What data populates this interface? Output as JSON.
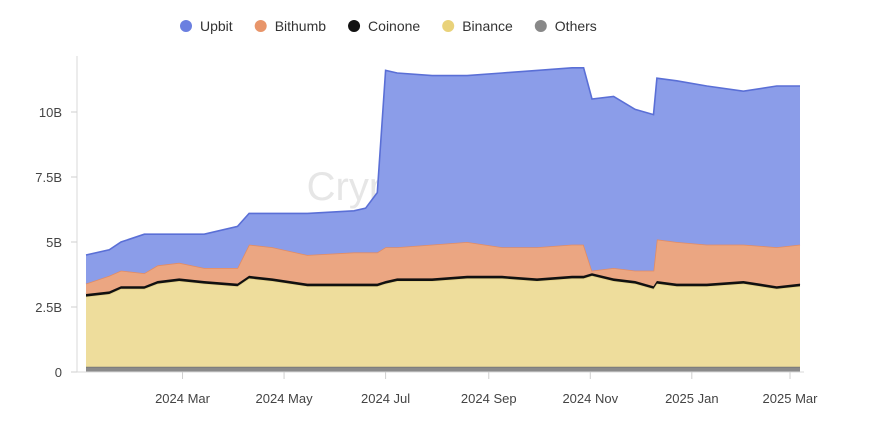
{
  "chart_data": {
    "type": "area",
    "stacked": true,
    "watermark": "CryptoQuant",
    "legend_position": "top-center",
    "grid": false,
    "ylim": [
      0,
      12000000000
    ],
    "y_ticks": [
      {
        "value": 0,
        "label": "0"
      },
      {
        "value": 2500000000,
        "label": "2.5B"
      },
      {
        "value": 5000000000,
        "label": "5B"
      },
      {
        "value": 7500000000,
        "label": "7.5B"
      },
      {
        "value": 10000000000,
        "label": "10B"
      }
    ],
    "x_ticks": [
      {
        "value": "2024-03-01",
        "label": "2024 Mar"
      },
      {
        "value": "2024-05-01",
        "label": "2024 May"
      },
      {
        "value": "2024-07-01",
        "label": "2024 Jul"
      },
      {
        "value": "2024-09-01",
        "label": "2024 Sep"
      },
      {
        "value": "2024-11-01",
        "label": "2024 Nov"
      },
      {
        "value": "2025-01-01",
        "label": "2025 Jan"
      },
      {
        "value": "2025-03-01",
        "label": "2025 Mar"
      }
    ],
    "x": [
      "2024-01-03",
      "2024-01-17",
      "2024-01-24",
      "2024-02-07",
      "2024-02-15",
      "2024-02-28",
      "2024-03-14",
      "2024-04-03",
      "2024-04-10",
      "2024-04-24",
      "2024-05-15",
      "2024-06-12",
      "2024-06-19",
      "2024-06-26",
      "2024-07-01",
      "2024-07-08",
      "2024-07-29",
      "2024-08-19",
      "2024-09-09",
      "2024-09-30",
      "2024-10-21",
      "2024-10-28",
      "2024-11-02",
      "2024-11-15",
      "2024-11-28",
      "2024-12-09",
      "2024-12-11",
      "2024-12-23",
      "2025-01-10",
      "2025-02-01",
      "2025-02-21",
      "2025-03-07"
    ],
    "series": [
      {
        "name": "Others",
        "color": "#8a8a8a",
        "values": [
          0.2,
          0.2,
          0.2,
          0.2,
          0.2,
          0.2,
          0.2,
          0.2,
          0.2,
          0.2,
          0.2,
          0.2,
          0.2,
          0.2,
          0.2,
          0.2,
          0.2,
          0.2,
          0.2,
          0.2,
          0.2,
          0.2,
          0.2,
          0.2,
          0.2,
          0.2,
          0.2,
          0.2,
          0.2,
          0.2,
          0.2,
          0.2
        ]
      },
      {
        "name": "Binance",
        "color": "#eedd9c",
        "values": [
          2.7,
          2.8,
          3.0,
          3.0,
          3.2,
          3.3,
          3.2,
          3.1,
          3.4,
          3.3,
          3.1,
          3.1,
          3.1,
          3.1,
          3.2,
          3.3,
          3.3,
          3.4,
          3.4,
          3.3,
          3.4,
          3.4,
          3.5,
          3.3,
          3.2,
          3.0,
          3.2,
          3.1,
          3.1,
          3.2,
          3.0,
          3.1
        ]
      },
      {
        "name": "Coinone",
        "color": "#111111",
        "values": [
          0.1,
          0.1,
          0.1,
          0.1,
          0.1,
          0.1,
          0.1,
          0.1,
          0.1,
          0.1,
          0.1,
          0.1,
          0.1,
          0.1,
          0.1,
          0.1,
          0.1,
          0.1,
          0.1,
          0.1,
          0.1,
          0.1,
          0.1,
          0.1,
          0.1,
          0.1,
          0.1,
          0.1,
          0.1,
          0.1,
          0.1,
          0.1
        ]
      },
      {
        "name": "Bithumb",
        "color": "#eba682",
        "values": [
          0.4,
          0.6,
          0.6,
          0.5,
          0.6,
          0.6,
          0.5,
          0.6,
          1.2,
          1.2,
          1.1,
          1.2,
          1.2,
          1.2,
          1.3,
          1.2,
          1.3,
          1.3,
          1.1,
          1.2,
          1.2,
          1.2,
          0.1,
          0.4,
          0.4,
          0.6,
          1.6,
          1.6,
          1.5,
          1.4,
          1.5,
          1.5
        ]
      },
      {
        "name": "Upbit",
        "color": "#8b9de9",
        "values": [
          1.1,
          1.0,
          1.1,
          1.5,
          1.2,
          1.1,
          1.3,
          1.6,
          1.2,
          1.3,
          1.6,
          1.6,
          1.7,
          2.3,
          6.8,
          6.7,
          6.5,
          6.4,
          6.7,
          6.8,
          6.8,
          6.8,
          6.6,
          6.6,
          6.2,
          6.0,
          6.2,
          6.2,
          6.1,
          5.9,
          6.2,
          6.1
        ]
      }
    ],
    "value_unit_note": "values in billions",
    "legend": [
      {
        "name": "Upbit",
        "color": "#6b7fe0"
      },
      {
        "name": "Bithumb",
        "color": "#e8956a"
      },
      {
        "name": "Coinone",
        "color": "#111111"
      },
      {
        "name": "Binance",
        "color": "#e9d27a"
      },
      {
        "name": "Others",
        "color": "#888888"
      }
    ]
  }
}
